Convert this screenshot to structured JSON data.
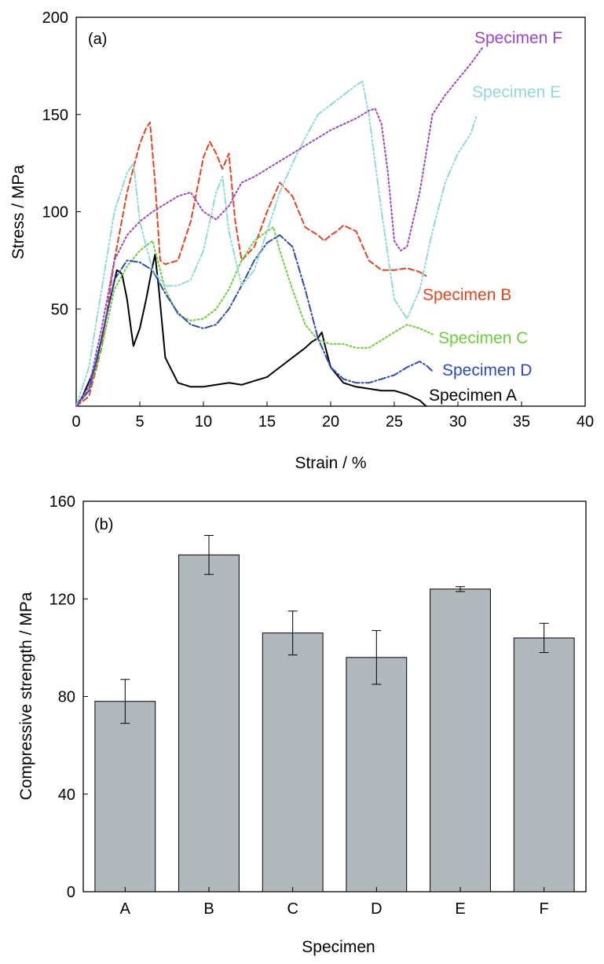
{
  "chart_data": [
    {
      "type": "line",
      "panel_label": "(a)",
      "xlabel": "Strain / %",
      "ylabel": "Stress / MPa",
      "xlim": [
        0,
        40
      ],
      "ylim": [
        0,
        200
      ],
      "xticks": [
        0,
        5,
        10,
        15,
        20,
        25,
        30,
        35,
        40
      ],
      "yticks": [
        50,
        100,
        150,
        200
      ],
      "grid": false,
      "series": [
        {
          "name": "Specimen A",
          "color": "#000000",
          "dash": "solid",
          "x": [
            0,
            0.5,
            1.5,
            2.5,
            3.2,
            3.6,
            4.0,
            4.3,
            4.5,
            5.0,
            5.5,
            6.0,
            6.2,
            6.5,
            7.0,
            8.0,
            9.0,
            10.0,
            11.0,
            12.0,
            13.0,
            14.0,
            15.0,
            16.0,
            17.0,
            18.0,
            18.5,
            19.0,
            19.3,
            19.6,
            20.0,
            21.0,
            22.0,
            23.0,
            24.0,
            25.0,
            26.0,
            27.0,
            27.5
          ],
          "y": [
            0,
            5,
            20,
            50,
            70,
            68,
            55,
            40,
            31,
            40,
            55,
            72,
            78,
            60,
            25,
            12,
            10,
            10,
            11,
            12,
            11,
            13,
            15,
            20,
            25,
            30,
            33,
            35,
            38,
            30,
            20,
            12,
            10,
            9,
            8,
            8,
            6,
            3,
            0
          ]
        },
        {
          "name": "Specimen B",
          "color": "#e8431c",
          "dash": "dashed",
          "x": [
            0,
            1.0,
            2.0,
            3.0,
            4.0,
            5.0,
            5.5,
            5.8,
            6.2,
            6.6,
            7.0,
            8.0,
            9.0,
            10.0,
            10.5,
            11.0,
            11.5,
            12.0,
            12.5,
            13.0,
            14.0,
            15.0,
            16.0,
            17.0,
            18.0,
            19.0,
            19.5,
            20.0,
            20.5,
            21.0,
            22.0,
            23.0,
            24.0,
            25.0,
            26.0,
            27.0,
            27.5
          ],
          "y": [
            0,
            5,
            30,
            75,
            110,
            135,
            143,
            146,
            115,
            75,
            73,
            75,
            95,
            128,
            136,
            130,
            122,
            130,
            95,
            75,
            82,
            100,
            115,
            108,
            92,
            88,
            85,
            88,
            90,
            93,
            90,
            75,
            70,
            70,
            71,
            69,
            67
          ]
        },
        {
          "name": "Specimen C",
          "color": "#6ccf38",
          "dash": "dotted",
          "x": [
            0,
            1.0,
            2.0,
            3.0,
            4.0,
            5.0,
            6.0,
            7.0,
            8.0,
            9.0,
            10.0,
            11.0,
            12.0,
            13.0,
            14.0,
            15.0,
            15.5,
            16.0,
            17.0,
            18.0,
            19.0,
            20.0,
            21.0,
            22.0,
            23.0,
            24.0,
            25.0,
            26.0,
            27.0,
            28.0
          ],
          "y": [
            0,
            8,
            30,
            60,
            72,
            80,
            85,
            60,
            47,
            44,
            45,
            50,
            60,
            75,
            85,
            90,
            92,
            80,
            60,
            42,
            34,
            32,
            32,
            30,
            30,
            34,
            38,
            42,
            40,
            37
          ]
        },
        {
          "name": "Specimen D",
          "color": "#2b4bb8",
          "dash": "dashdot",
          "x": [
            0,
            1.0,
            2.0,
            3.0,
            4.0,
            5.0,
            6.0,
            7.0,
            8.0,
            9.0,
            10.0,
            11.0,
            12.0,
            13.0,
            14.0,
            15.0,
            16.0,
            17.0,
            18.0,
            19.0,
            20.0,
            21.0,
            22.0,
            23.0,
            24.0,
            25.0,
            26.0,
            27.0,
            27.5,
            28.0
          ],
          "y": [
            0,
            8,
            35,
            65,
            75,
            74,
            70,
            58,
            48,
            42,
            40,
            42,
            50,
            62,
            75,
            84,
            88,
            82,
            60,
            35,
            20,
            14,
            12,
            12,
            14,
            16,
            20,
            23,
            21,
            18
          ]
        },
        {
          "name": "Specimen E",
          "color": "#8fdad7",
          "dash": "dashdotdot",
          "x": [
            0,
            1.0,
            2.0,
            3.0,
            4.0,
            4.5,
            5.0,
            6.0,
            7.0,
            8.0,
            9.0,
            10.0,
            11.0,
            11.5,
            12.0,
            13.0,
            14.0,
            15.0,
            16.0,
            17.0,
            18.0,
            19.0,
            20.0,
            21.0,
            22.0,
            22.5,
            23.0,
            24.0,
            25.0,
            26.0,
            27.0,
            28.0,
            29.0,
            30.0,
            31.0,
            31.5
          ],
          "y": [
            0,
            20,
            60,
            100,
            120,
            125,
            95,
            70,
            62,
            62,
            65,
            80,
            110,
            118,
            90,
            62,
            70,
            90,
            110,
            125,
            138,
            150,
            155,
            160,
            165,
            167,
            150,
            100,
            55,
            45,
            60,
            90,
            115,
            130,
            140,
            150
          ]
        },
        {
          "name": "Specimen F",
          "color": "#9848c8",
          "dash": "dotted",
          "x": [
            0,
            1.0,
            2.0,
            3.0,
            4.0,
            5.0,
            6.0,
            7.0,
            8.0,
            9.0,
            10.0,
            11.0,
            12.0,
            13.0,
            14.0,
            15.0,
            16.0,
            17.0,
            18.0,
            19.0,
            20.0,
            21.0,
            22.0,
            23.0,
            23.5,
            24.0,
            24.5,
            25.0,
            25.5,
            26.0,
            27.0,
            28.0,
            29.0,
            30.0,
            31.0,
            32.0
          ],
          "y": [
            0,
            10,
            40,
            75,
            88,
            95,
            100,
            104,
            108,
            110,
            100,
            96,
            103,
            115,
            118,
            122,
            126,
            130,
            134,
            138,
            142,
            145,
            148,
            152,
            153,
            145,
            120,
            85,
            80,
            82,
            110,
            150,
            160,
            168,
            176,
            185
          ]
        }
      ]
    },
    {
      "type": "bar",
      "panel_label": "(b)",
      "xlabel": "Specimen",
      "ylabel": "Compressive strength / MPa",
      "ylim": [
        0,
        160
      ],
      "yticks": [
        0,
        40,
        80,
        120,
        160
      ],
      "grid": false,
      "categories": [
        "A",
        "B",
        "C",
        "D",
        "E",
        "F"
      ],
      "values": [
        78,
        138,
        106,
        96,
        124,
        104
      ],
      "errors": [
        9,
        8,
        9,
        11,
        1,
        6
      ],
      "bar_color": "#b2b9bd"
    }
  ]
}
